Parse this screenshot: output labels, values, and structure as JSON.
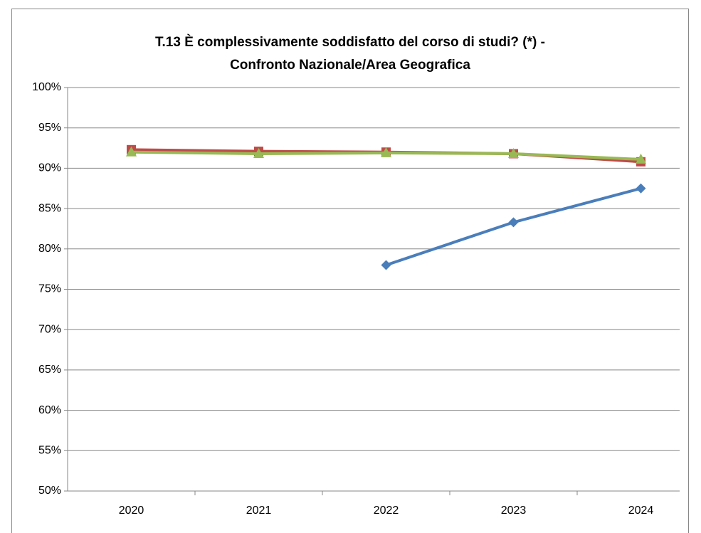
{
  "chart_data": {
    "type": "line",
    "title": [
      "T.13 È complessivamente soddisfatto del corso di studi? (*) -",
      "Confronto Nazionale/Area Geografica"
    ],
    "categories": [
      "2020",
      "2021",
      "2022",
      "2023",
      "2024"
    ],
    "series": [
      {
        "color": "#4a7ebb",
        "marker": "diamond",
        "values": [
          null,
          null,
          78,
          83.3,
          87.5
        ]
      },
      {
        "color": "#be4b48",
        "marker": "square",
        "values": [
          92.3,
          92.1,
          92,
          91.8,
          90.8
        ]
      },
      {
        "color": "#98b954",
        "marker": "triangle",
        "values": [
          92,
          91.8,
          91.9,
          91.8,
          91.1
        ]
      }
    ],
    "ylim": [
      50,
      100
    ],
    "yticks": [
      {
        "value": 50,
        "label": "50%"
      },
      {
        "value": 55,
        "label": "55%"
      },
      {
        "value": 60,
        "label": "60%"
      },
      {
        "value": 65,
        "label": "65%"
      },
      {
        "value": 70,
        "label": "70%"
      },
      {
        "value": 75,
        "label": "75%"
      },
      {
        "value": 80,
        "label": "80%"
      },
      {
        "value": 85,
        "label": "85%"
      },
      {
        "value": 90,
        "label": "90%"
      },
      {
        "value": 95,
        "label": "95%"
      },
      {
        "value": 100,
        "label": "100%"
      }
    ],
    "grid": true
  }
}
